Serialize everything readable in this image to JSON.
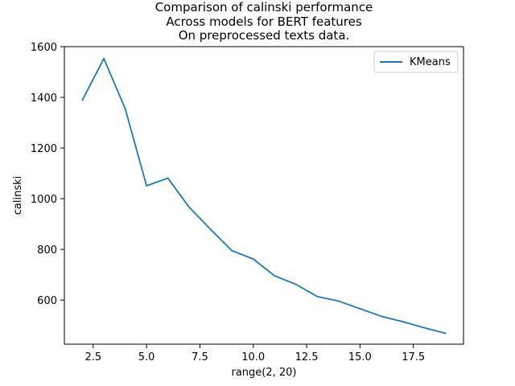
{
  "chart_data": {
    "type": "line",
    "title_lines": [
      "Comparison of calinski performance",
      "Across models for BERT features",
      "On preprocessed texts data."
    ],
    "xlabel": "range(2, 20)",
    "ylabel": "calinski",
    "x": [
      2,
      3,
      4,
      5,
      6,
      7,
      8,
      9,
      10,
      11,
      12,
      13,
      14,
      15,
      16,
      17,
      18,
      19
    ],
    "series": [
      {
        "name": "KMeans",
        "color": "#1f77b4",
        "values": [
          1390,
          1553,
          1355,
          1051,
          1081,
          966,
          879,
          795,
          762,
          696,
          662,
          614,
          596,
          566,
          536,
          515,
          491,
          469
        ]
      }
    ],
    "xlim": [
      1.15,
      19.85
    ],
    "ylim": [
      426,
      1600
    ],
    "x_ticks": [
      2.5,
      5.0,
      7.5,
      10.0,
      12.5,
      15.0,
      17.5
    ],
    "x_tick_labels": [
      "2.5",
      "5.0",
      "7.5",
      "10.0",
      "12.5",
      "15.0",
      "17.5"
    ],
    "y_ticks": [
      600,
      800,
      1000,
      1200,
      1400,
      1600
    ],
    "y_tick_labels": [
      "600",
      "800",
      "1000",
      "1200",
      "1400",
      "1600"
    ],
    "grid": false,
    "legend_position": "top-right"
  }
}
